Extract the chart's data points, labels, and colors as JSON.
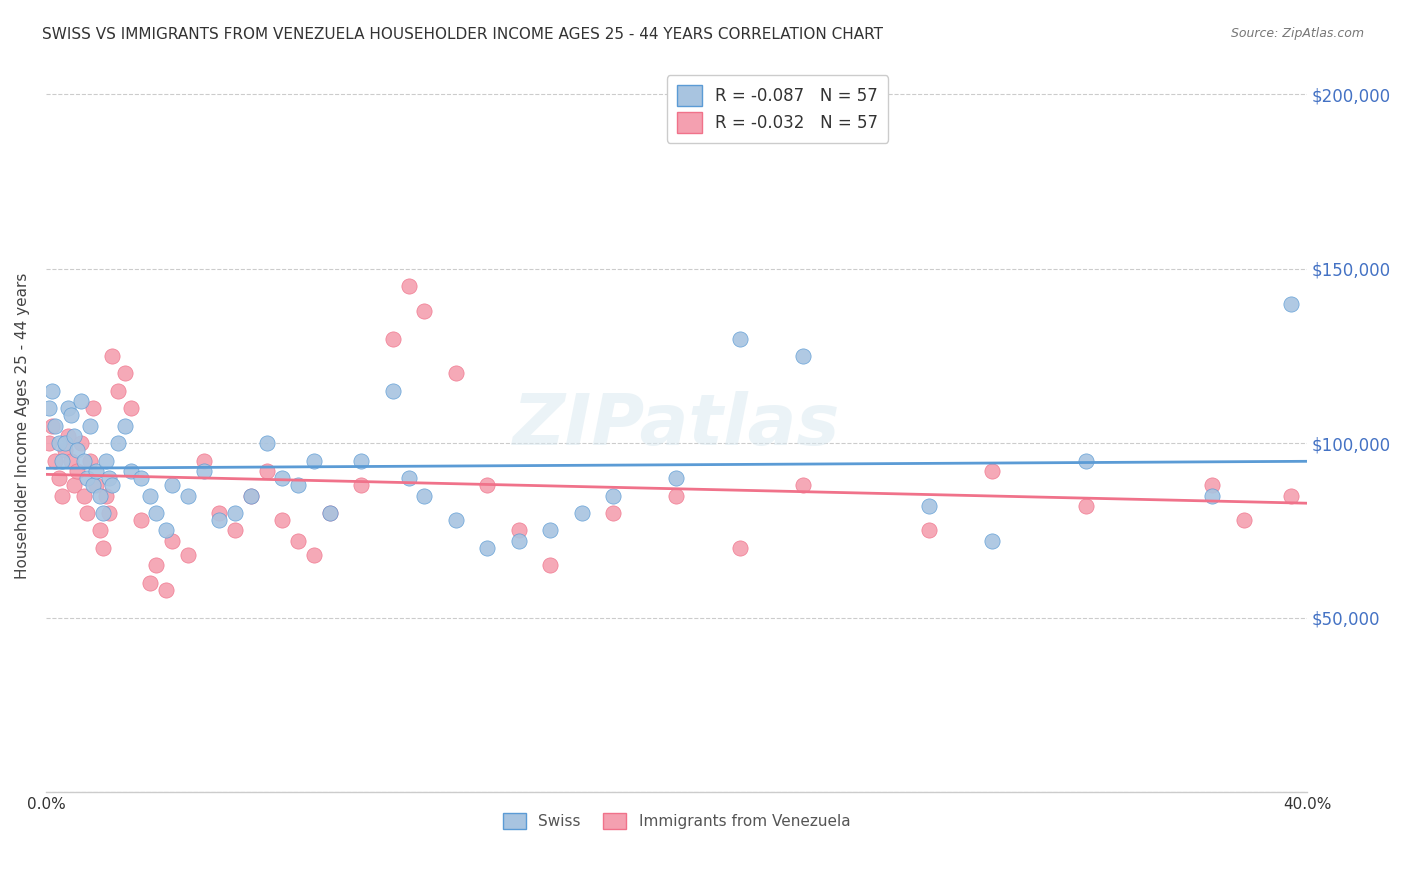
{
  "title": "SWISS VS IMMIGRANTS FROM VENEZUELA HOUSEHOLDER INCOME AGES 25 - 44 YEARS CORRELATION CHART",
  "source": "Source: ZipAtlas.com",
  "xlabel_bottom": "",
  "ylabel": "Householder Income Ages 25 - 44 years",
  "x_min": 0.0,
  "x_max": 0.4,
  "y_min": 0,
  "y_max": 210000,
  "y_ticks": [
    0,
    50000,
    100000,
    150000,
    200000
  ],
  "y_tick_labels": [
    "",
    "$50,000",
    "$100,000",
    "$150,000",
    "$200,000"
  ],
  "x_ticks": [
    0.0,
    0.05,
    0.1,
    0.15,
    0.2,
    0.25,
    0.3,
    0.35,
    0.4
  ],
  "x_tick_labels": [
    "0.0%",
    "",
    "",
    "",
    "",
    "",
    "",
    "",
    "40.0%"
  ],
  "swiss_color": "#a8c4e0",
  "venezuela_color": "#f4a0b0",
  "swiss_line_color": "#5b9bd5",
  "venezuela_line_color": "#f0728a",
  "swiss_R": -0.087,
  "swiss_N": 57,
  "venezuela_R": -0.032,
  "venezuela_N": 57,
  "watermark": "ZIPatlas",
  "legend_label_swiss": "R = -0.087   N = 57",
  "legend_label_venezuela": "R = -0.032   N = 57",
  "legend_bottom_swiss": "Swiss",
  "legend_bottom_venezuela": "Immigrants from Venezuela",
  "swiss_x": [
    0.001,
    0.002,
    0.003,
    0.004,
    0.005,
    0.006,
    0.007,
    0.008,
    0.009,
    0.01,
    0.011,
    0.012,
    0.013,
    0.014,
    0.015,
    0.016,
    0.017,
    0.018,
    0.019,
    0.02,
    0.021,
    0.023,
    0.025,
    0.027,
    0.03,
    0.033,
    0.035,
    0.038,
    0.04,
    0.045,
    0.05,
    0.055,
    0.06,
    0.065,
    0.07,
    0.075,
    0.08,
    0.085,
    0.09,
    0.1,
    0.11,
    0.115,
    0.12,
    0.13,
    0.14,
    0.15,
    0.16,
    0.17,
    0.18,
    0.2,
    0.22,
    0.24,
    0.28,
    0.3,
    0.33,
    0.37,
    0.395
  ],
  "swiss_y": [
    110000,
    115000,
    105000,
    100000,
    95000,
    100000,
    110000,
    108000,
    102000,
    98000,
    112000,
    95000,
    90000,
    105000,
    88000,
    92000,
    85000,
    80000,
    95000,
    90000,
    88000,
    100000,
    105000,
    92000,
    90000,
    85000,
    80000,
    75000,
    88000,
    85000,
    92000,
    78000,
    80000,
    85000,
    100000,
    90000,
    88000,
    95000,
    80000,
    95000,
    115000,
    90000,
    85000,
    78000,
    70000,
    72000,
    75000,
    80000,
    85000,
    90000,
    130000,
    125000,
    82000,
    72000,
    95000,
    85000,
    140000
  ],
  "venezuela_x": [
    0.001,
    0.002,
    0.003,
    0.004,
    0.005,
    0.006,
    0.007,
    0.008,
    0.009,
    0.01,
    0.011,
    0.012,
    0.013,
    0.014,
    0.015,
    0.016,
    0.017,
    0.018,
    0.019,
    0.02,
    0.021,
    0.023,
    0.025,
    0.027,
    0.03,
    0.033,
    0.035,
    0.038,
    0.04,
    0.045,
    0.05,
    0.055,
    0.06,
    0.065,
    0.07,
    0.075,
    0.08,
    0.085,
    0.09,
    0.1,
    0.11,
    0.115,
    0.12,
    0.13,
    0.14,
    0.15,
    0.16,
    0.18,
    0.2,
    0.22,
    0.24,
    0.28,
    0.3,
    0.33,
    0.37,
    0.38,
    0.395
  ],
  "venezuela_y": [
    100000,
    105000,
    95000,
    90000,
    85000,
    98000,
    102000,
    95000,
    88000,
    92000,
    100000,
    85000,
    80000,
    95000,
    110000,
    88000,
    75000,
    70000,
    85000,
    80000,
    125000,
    115000,
    120000,
    110000,
    78000,
    60000,
    65000,
    58000,
    72000,
    68000,
    95000,
    80000,
    75000,
    85000,
    92000,
    78000,
    72000,
    68000,
    80000,
    88000,
    130000,
    145000,
    138000,
    120000,
    88000,
    75000,
    65000,
    80000,
    85000,
    70000,
    88000,
    75000,
    92000,
    82000,
    88000,
    78000,
    85000
  ]
}
